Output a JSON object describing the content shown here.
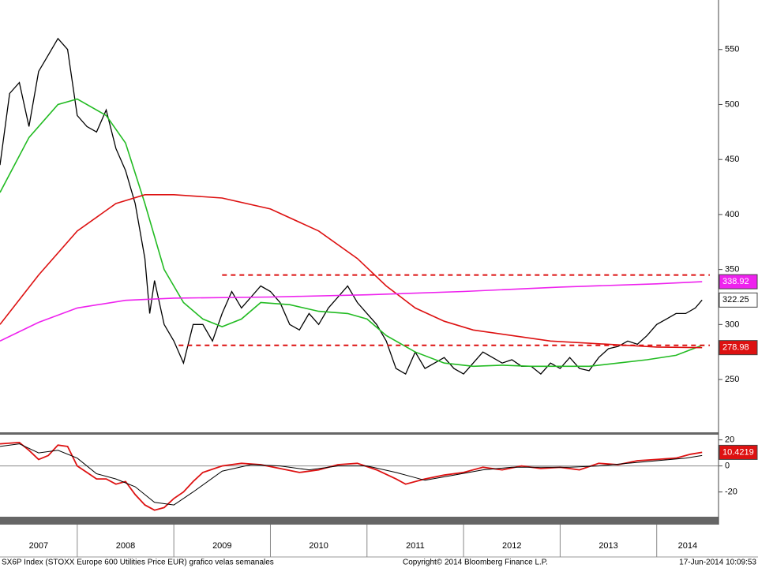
{
  "chart_data": [
    {
      "type": "line",
      "xlim": [
        2007.2,
        2014.64
      ],
      "ylim": [
        202,
        595
      ],
      "yticks": [
        250,
        300,
        350,
        400,
        450,
        500,
        550
      ],
      "xticks": [
        2007,
        2008,
        2009,
        2010,
        2011,
        2012,
        2013,
        2014
      ],
      "series": [
        {
          "color": "#000000",
          "width": 1.3,
          "last_label": true,
          "x": [
            2007.2,
            2007.3,
            2007.4,
            2007.5,
            2007.6,
            2007.7,
            2007.8,
            2007.9,
            2008.0,
            2008.1,
            2008.2,
            2008.3,
            2008.4,
            2008.5,
            2008.6,
            2008.7,
            2008.75,
            2008.8,
            2008.9,
            2009.0,
            2009.1,
            2009.2,
            2009.3,
            2009.4,
            2009.5,
            2009.6,
            2009.7,
            2009.8,
            2009.9,
            2010.0,
            2010.1,
            2010.2,
            2010.3,
            2010.4,
            2010.5,
            2010.6,
            2010.7,
            2010.8,
            2010.9,
            2011.0,
            2011.1,
            2011.2,
            2011.3,
            2011.4,
            2011.5,
            2011.6,
            2011.7,
            2011.8,
            2011.9,
            2012.0,
            2012.1,
            2012.2,
            2012.3,
            2012.4,
            2012.5,
            2012.6,
            2012.7,
            2012.8,
            2012.9,
            2013.0,
            2013.1,
            2013.2,
            2013.3,
            2013.4,
            2013.5,
            2013.6,
            2013.7,
            2013.8,
            2013.9,
            2014.0,
            2014.1,
            2014.2,
            2014.3,
            2014.4,
            2014.47
          ],
          "values": [
            445,
            510,
            520,
            480,
            530,
            545,
            560,
            550,
            490,
            480,
            475,
            495,
            460,
            440,
            410,
            360,
            310,
            340,
            300,
            285,
            265,
            300,
            300,
            285,
            310,
            330,
            315,
            325,
            335,
            330,
            320,
            300,
            295,
            310,
            300,
            315,
            325,
            335,
            320,
            310,
            300,
            285,
            260,
            255,
            275,
            260,
            265,
            270,
            260,
            255,
            265,
            275,
            270,
            265,
            268,
            262,
            262,
            255,
            265,
            260,
            270,
            260,
            258,
            270,
            278,
            280,
            285,
            282,
            290,
            300,
            305,
            310,
            310,
            315,
            322.25
          ]
        },
        {
          "color": "#22bb22",
          "width": 1.6,
          "x": [
            2007.2,
            2007.5,
            2007.8,
            2008.0,
            2008.3,
            2008.5,
            2008.7,
            2008.9,
            2009.1,
            2009.3,
            2009.5,
            2009.7,
            2009.9,
            2010.2,
            2010.5,
            2010.8,
            2011.0,
            2011.2,
            2011.5,
            2011.8,
            2012.1,
            2012.4,
            2012.7,
            2013.0,
            2013.3,
            2013.6,
            2013.9,
            2014.2,
            2014.47
          ],
          "values": [
            420,
            470,
            500,
            505,
            490,
            465,
            410,
            350,
            320,
            305,
            298,
            305,
            320,
            318,
            312,
            310,
            305,
            290,
            275,
            265,
            262,
            263,
            262,
            262,
            262,
            265,
            268,
            272,
            281
          ]
        },
        {
          "color": "#dd1111",
          "width": 1.6,
          "last_label": true,
          "x": [
            2007.2,
            2007.6,
            2008.0,
            2008.4,
            2008.7,
            2009.0,
            2009.5,
            2010.0,
            2010.5,
            2010.9,
            2011.2,
            2011.5,
            2011.8,
            2012.1,
            2012.5,
            2012.9,
            2013.3,
            2013.7,
            2014.0,
            2014.47
          ],
          "values": [
            300,
            345,
            385,
            410,
            418,
            418,
            415,
            405,
            385,
            360,
            335,
            315,
            303,
            295,
            290,
            285,
            283,
            281,
            279.5,
            278.98
          ]
        },
        {
          "color": "#ee22ee",
          "width": 1.6,
          "last_label": true,
          "x": [
            2007.2,
            2007.6,
            2008.0,
            2008.5,
            2009.0,
            2010.0,
            2011.0,
            2012.0,
            2013.0,
            2014.0,
            2014.47
          ],
          "values": [
            285,
            302,
            315,
            322,
            324,
            325,
            327,
            330,
            334,
            337,
            338.92
          ]
        },
        {
          "color": "#dd1111",
          "width": 2,
          "dashed": true,
          "x": [
            2009.5,
            2014.55
          ],
          "values": [
            345,
            345
          ]
        },
        {
          "color": "#dd1111",
          "width": 2,
          "dashed": true,
          "x": [
            2009.05,
            2014.55
          ],
          "values": [
            281,
            281
          ]
        }
      ]
    },
    {
      "type": "line",
      "xlim": [
        2007.2,
        2014.64
      ],
      "ylim": [
        -39,
        24
      ],
      "yticks": [
        -20,
        0,
        20
      ],
      "zero_line": true,
      "series": [
        {
          "color": "#dd1111",
          "width": 1.8,
          "last_label": true,
          "x": [
            2007.2,
            2007.4,
            2007.5,
            2007.6,
            2007.7,
            2007.8,
            2007.9,
            2008.0,
            2008.1,
            2008.2,
            2008.3,
            2008.4,
            2008.5,
            2008.6,
            2008.7,
            2008.8,
            2008.9,
            2009.0,
            2009.1,
            2009.2,
            2009.3,
            2009.5,
            2009.7,
            2009.9,
            2010.1,
            2010.3,
            2010.5,
            2010.7,
            2010.9,
            2011.1,
            2011.3,
            2011.4,
            2011.6,
            2011.8,
            2012.0,
            2012.2,
            2012.4,
            2012.6,
            2012.8,
            2013.0,
            2013.2,
            2013.4,
            2013.6,
            2013.8,
            2014.0,
            2014.2,
            2014.35,
            2014.47
          ],
          "values": [
            17,
            18,
            12,
            5,
            8,
            16,
            15,
            0,
            -5,
            -10,
            -10,
            -14,
            -12,
            -22,
            -30,
            -34,
            -32,
            -25,
            -20,
            -12,
            -5,
            0,
            2,
            1,
            -2,
            -5,
            -3,
            1,
            2,
            -3,
            -10,
            -14,
            -10,
            -7,
            -5,
            -1,
            -3,
            0,
            -2,
            -1,
            -3,
            2,
            1,
            4,
            5,
            6,
            9,
            10.4219
          ]
        },
        {
          "color": "#000000",
          "width": 1,
          "x": [
            2007.2,
            2007.4,
            2007.6,
            2007.8,
            2008.0,
            2008.2,
            2008.4,
            2008.6,
            2008.8,
            2009.0,
            2009.2,
            2009.5,
            2009.8,
            2010.1,
            2010.4,
            2010.7,
            2011.0,
            2011.3,
            2011.6,
            2011.9,
            2012.2,
            2012.5,
            2012.8,
            2013.1,
            2013.4,
            2013.7,
            2014.0,
            2014.3,
            2014.47
          ],
          "values": [
            15,
            17,
            10,
            12,
            6,
            -6,
            -10,
            -16,
            -28,
            -30,
            -20,
            -4,
            1,
            0,
            -3,
            0,
            0,
            -5,
            -11,
            -7,
            -3,
            -1,
            -1,
            -1,
            0,
            2,
            4,
            6,
            8
          ]
        }
      ]
    }
  ],
  "footer": {
    "left": "SX6P Index (STOXX Europe 600 Utilities Price EUR) grafico velas semanales",
    "center": "Copyright© 2014 Bloomberg Finance L.P.",
    "right": "17-Jun-2014 10:09:53"
  }
}
